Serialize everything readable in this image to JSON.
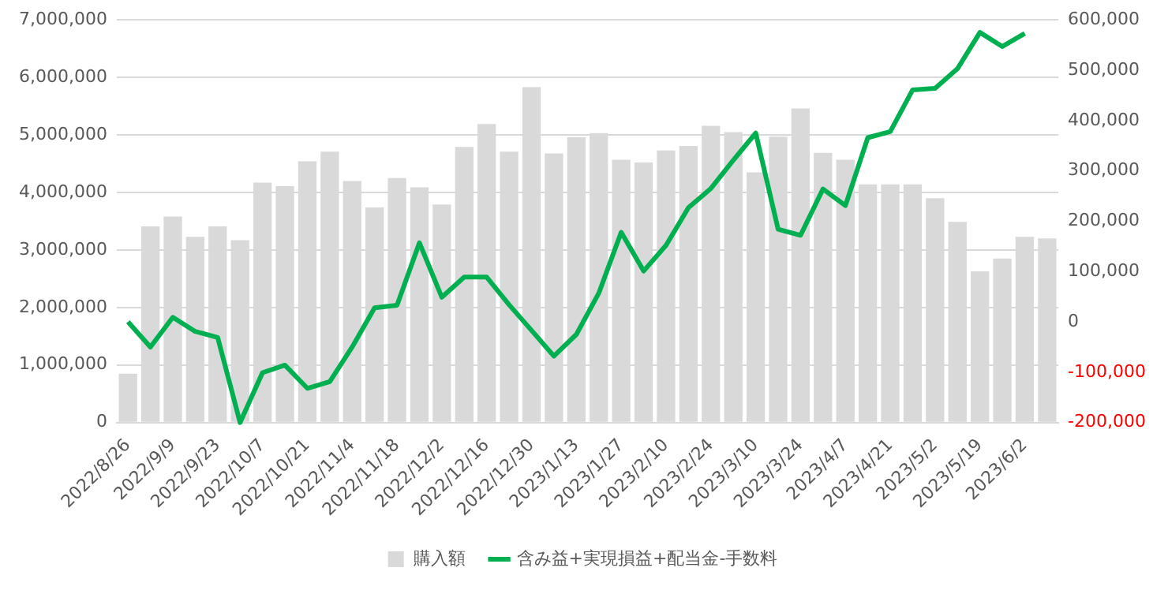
{
  "chart_data": {
    "type": "bar",
    "categories": [
      "2022/8/26",
      null,
      "2022/9/9",
      null,
      "2022/9/23",
      null,
      "2022/10/7",
      null,
      "2022/10/21",
      null,
      "2022/11/4",
      null,
      "2022/11/18",
      null,
      "2022/12/2",
      null,
      "2022/12/16",
      null,
      "2022/12/30",
      null,
      "2023/1/13",
      null,
      "2023/1/27",
      null,
      "2023/2/10",
      null,
      "2023/2/24",
      null,
      "2023/3/10",
      null,
      "2023/3/24",
      null,
      "2023/4/7",
      null,
      "2023/4/21",
      null,
      "2023/5/2",
      null,
      "2023/5/19",
      null,
      "2023/6/2",
      null
    ],
    "series": [
      {
        "name": "購入額",
        "color": "#d9d9d9",
        "values": [
          850000,
          3410000,
          3580000,
          3230000,
          3410000,
          3170000,
          4170000,
          4110000,
          4540000,
          4710000,
          4200000,
          3740000,
          4250000,
          4090000,
          3790000,
          4790000,
          5190000,
          4710000,
          5830000,
          4680000,
          4960000,
          5030000,
          4570000,
          4520000,
          4730000,
          4810000,
          5160000,
          5050000,
          4350000,
          4970000,
          5460000,
          4690000,
          4570000,
          4140000,
          4140000,
          4140000,
          3900000,
          3490000,
          2630000,
          2850000,
          3230000,
          3200000
        ]
      },
      {
        "name": "含み益+実現損益+配当金-手数料",
        "type": "line",
        "axis": "y2",
        "color": "#00b050",
        "values": [
          0,
          -50000,
          9000,
          -19000,
          -31000,
          -200000,
          -101000,
          -86000,
          -132000,
          -119000,
          -50000,
          28000,
          33000,
          157000,
          49000,
          89000,
          89000,
          34000,
          -17000,
          -68000,
          -25000,
          57000,
          178000,
          101000,
          152000,
          227000,
          265000,
          321000,
          375000,
          184000,
          172000,
          264000,
          231000,
          366000,
          378000,
          461000,
          464000,
          503000,
          575000,
          547000,
          573000,
          null
        ]
      }
    ],
    "ylim": [
      0,
      7000000
    ],
    "yticks": [
      0,
      {
        "value": 1000000,
        "label": "1,000,000"
      },
      {
        "value": 2000000,
        "label": "2,000,000"
      },
      {
        "value": 3000000,
        "label": "3,000,000"
      },
      {
        "value": 4000000,
        "label": "4,000,000"
      },
      {
        "value": 5000000,
        "label": "5,000,000"
      },
      {
        "value": 6000000,
        "label": "6,000,000"
      },
      {
        "value": 7000000,
        "label": "7,000,000"
      }
    ],
    "y2lim": [
      -200000,
      600000
    ],
    "y2ticks": [
      {
        "value": -200000,
        "label": "-200,000"
      },
      {
        "value": -100000,
        "label": "-100,000"
      },
      0,
      {
        "value": 100000,
        "label": "100,000"
      },
      {
        "value": 200000,
        "label": "200,000"
      },
      {
        "value": 300000,
        "label": "300,000"
      },
      {
        "value": 400000,
        "label": "400,000"
      },
      {
        "value": 500000,
        "label": "500,000"
      },
      {
        "value": 600000,
        "label": "600,000"
      }
    ],
    "grid": "y",
    "legend": "bottom",
    "marker": "none",
    "line_style": "solid"
  }
}
